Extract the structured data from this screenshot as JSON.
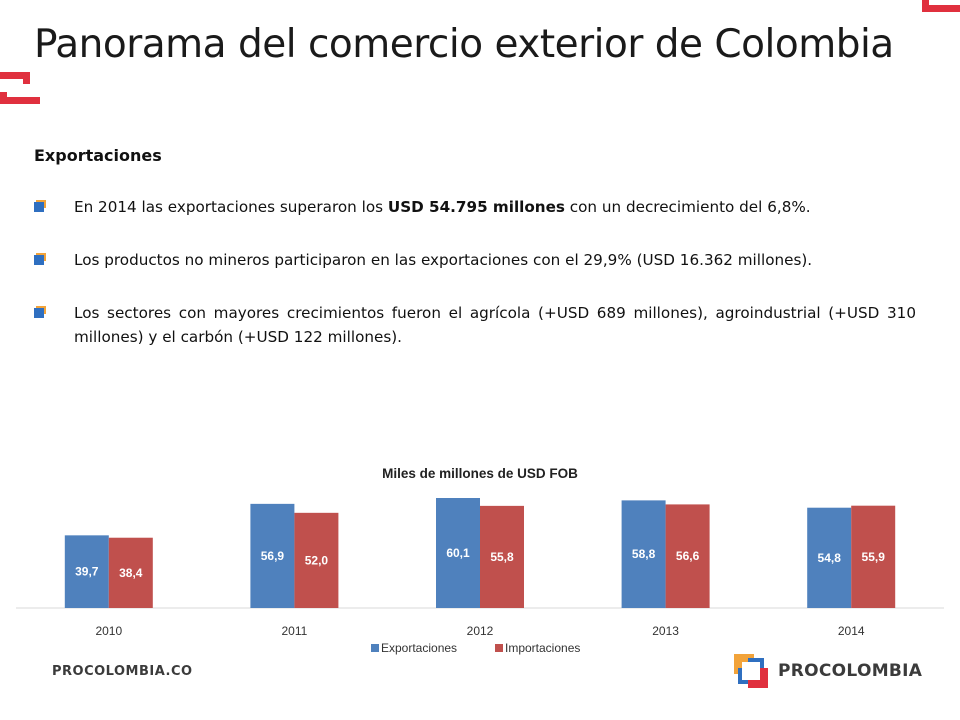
{
  "slide": {
    "title": "Panorama del comercio exterior de Colombia",
    "heading": "Exportaciones",
    "bullets": [
      {
        "pre": "En 2014 las exportaciones superaron los ",
        "bold": "USD 54.795 millones",
        "post": " con un decrecimiento del 6,8%."
      },
      {
        "pre": "Los productos no mineros participaron en las exportaciones con el 29,9% (USD 16.362 millones).",
        "bold": "",
        "post": ""
      },
      {
        "pre": "Los sectores con mayores crecimientos fueron el agrícola (+USD 689 millones), agroindustrial (+USD 310 millones) y el carbón (+USD 122 millones).",
        "bold": "",
        "post": ""
      }
    ]
  },
  "footer": {
    "left_text": "PROCOLOMBIA.CO",
    "brand": "PROCOLOMBIA"
  },
  "colors": {
    "accent_red": "#e0303e",
    "export_blue": "#4f81bd",
    "import_red": "#c0504d"
  },
  "chart_data": {
    "type": "bar",
    "title": "Miles de millones de USD FOB",
    "xlabel": "",
    "ylabel": "",
    "categories": [
      "2010",
      "2011",
      "2012",
      "2013",
      "2014"
    ],
    "series": [
      {
        "name": "Exportaciones",
        "color": "#4f81bd",
        "values": [
          39.7,
          56.9,
          60.1,
          58.8,
          54.8
        ],
        "labels": [
          "39,7",
          "56,9",
          "60,1",
          "58,8",
          "54,8"
        ]
      },
      {
        "name": "Importaciones",
        "color": "#c0504d",
        "values": [
          38.4,
          52.0,
          55.8,
          56.6,
          55.9
        ],
        "labels": [
          "38,4",
          "52,0",
          "55,8",
          "56,6",
          "55,9"
        ]
      }
    ],
    "ylim": [
      0,
      60.1
    ],
    "grid": false,
    "legend": "bottom"
  }
}
